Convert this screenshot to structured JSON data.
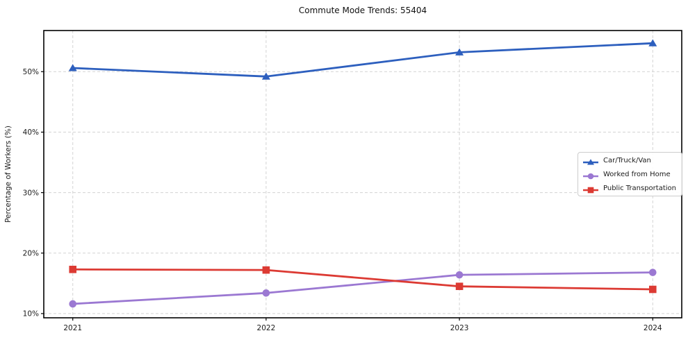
{
  "chart_data": {
    "type": "line",
    "title": "Commute Mode Trends: 55404",
    "xlabel": "",
    "ylabel": "Percentage of Workers (%)",
    "categories": [
      2021,
      2022,
      2023,
      2024
    ],
    "xtick_labels": [
      "2021",
      "2022",
      "2023",
      "2024"
    ],
    "yticks": [
      10,
      20,
      30,
      40,
      50
    ],
    "ytick_labels": [
      "10%",
      "20%",
      "30%",
      "40%",
      "50%"
    ],
    "xlim": [
      2020.85,
      2024.15
    ],
    "ylim": [
      9.3,
      56.8
    ],
    "grid": true,
    "grid_style": "dashed",
    "legend_position": "right-center",
    "series": [
      {
        "name": "Car/Truck/Van",
        "marker": "triangle-up",
        "color": "#2d5fbe",
        "values": [
          50.6,
          49.2,
          53.2,
          54.7
        ]
      },
      {
        "name": "Worked from Home",
        "marker": "circle",
        "color": "#9b78d2",
        "values": [
          11.6,
          13.4,
          16.4,
          16.8
        ]
      },
      {
        "name": "Public Transportation",
        "marker": "square",
        "color": "#dc3a33",
        "values": [
          17.3,
          17.2,
          14.5,
          14.0
        ]
      }
    ]
  },
  "colors": {
    "background": "#ffffff",
    "grid": "#d3d3d3",
    "spine": "#000000",
    "text": "#1a1a1a"
  }
}
